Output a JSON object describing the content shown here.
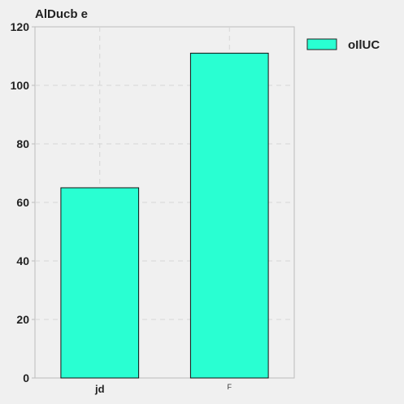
{
  "chart_data": {
    "type": "bar",
    "title": "AlDucb e",
    "xlabel": "",
    "ylabel": "",
    "categories": [
      "jd",
      "F"
    ],
    "series": [
      {
        "name": "oIlUC",
        "values": [
          65,
          111
        ],
        "color": "#29ffd2"
      }
    ],
    "ylim": [
      0,
      120
    ],
    "yticks": [
      0,
      20,
      40,
      60,
      80,
      100,
      120
    ],
    "grid": true,
    "legend_position": "top-right-outside"
  }
}
